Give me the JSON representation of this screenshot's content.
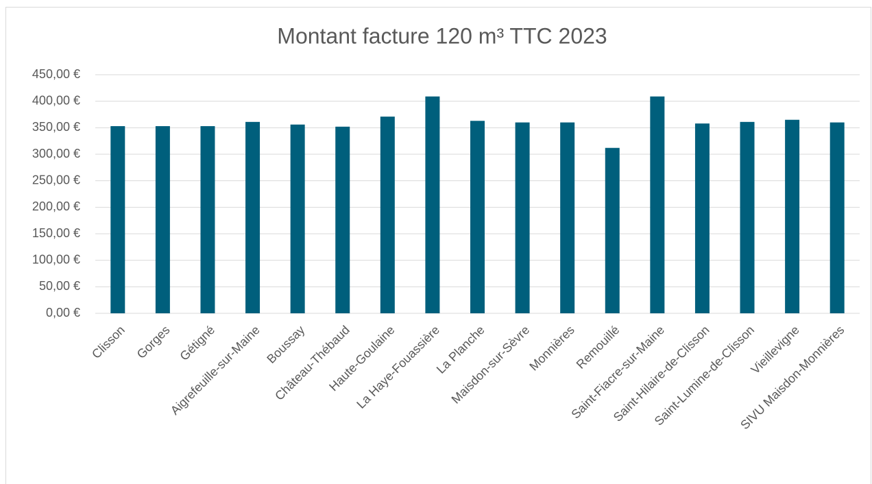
{
  "chart_data": {
    "type": "bar",
    "title": "Montant facture 120 m³ TTC 2023",
    "categories": [
      "Clisson",
      "Gorges",
      "Gétigné",
      "Aigrefeuille-sur-Maine",
      "Boussay",
      "Château-Thébaud",
      "Haute-Goulaine",
      "La Haye-Fouassière",
      "La Planche",
      "Maisdon-sur-Sèvre",
      "Monnières",
      "Remouillé",
      "Saint-Fiacre-sur-Maine",
      "Saint-Hilaire-de-Clisson",
      "Saint-Lumine-de-Clisson",
      "Vieillevigne",
      "SIVU Maisdon-Monnières"
    ],
    "values": [
      353,
      353,
      353,
      361,
      356,
      352,
      371,
      409,
      363,
      360,
      360,
      312,
      409,
      358,
      361,
      365,
      360
    ],
    "color": "#005f7c",
    "ylim": [
      0,
      450
    ],
    "yticks": [
      {
        "value": 0,
        "label": "0,00 €"
      },
      {
        "value": 50,
        "label": "50,00 €"
      },
      {
        "value": 100,
        "label": "100,00 €"
      },
      {
        "value": 150,
        "label": "150,00 €"
      },
      {
        "value": 200,
        "label": "200,00 €"
      },
      {
        "value": 250,
        "label": "250,00 €"
      },
      {
        "value": 300,
        "label": "300,00 €"
      },
      {
        "value": 350,
        "label": "350,00 €"
      },
      {
        "value": 400,
        "label": "400,00 €"
      },
      {
        "value": 450,
        "label": "450,00 €"
      }
    ],
    "grid": true
  }
}
